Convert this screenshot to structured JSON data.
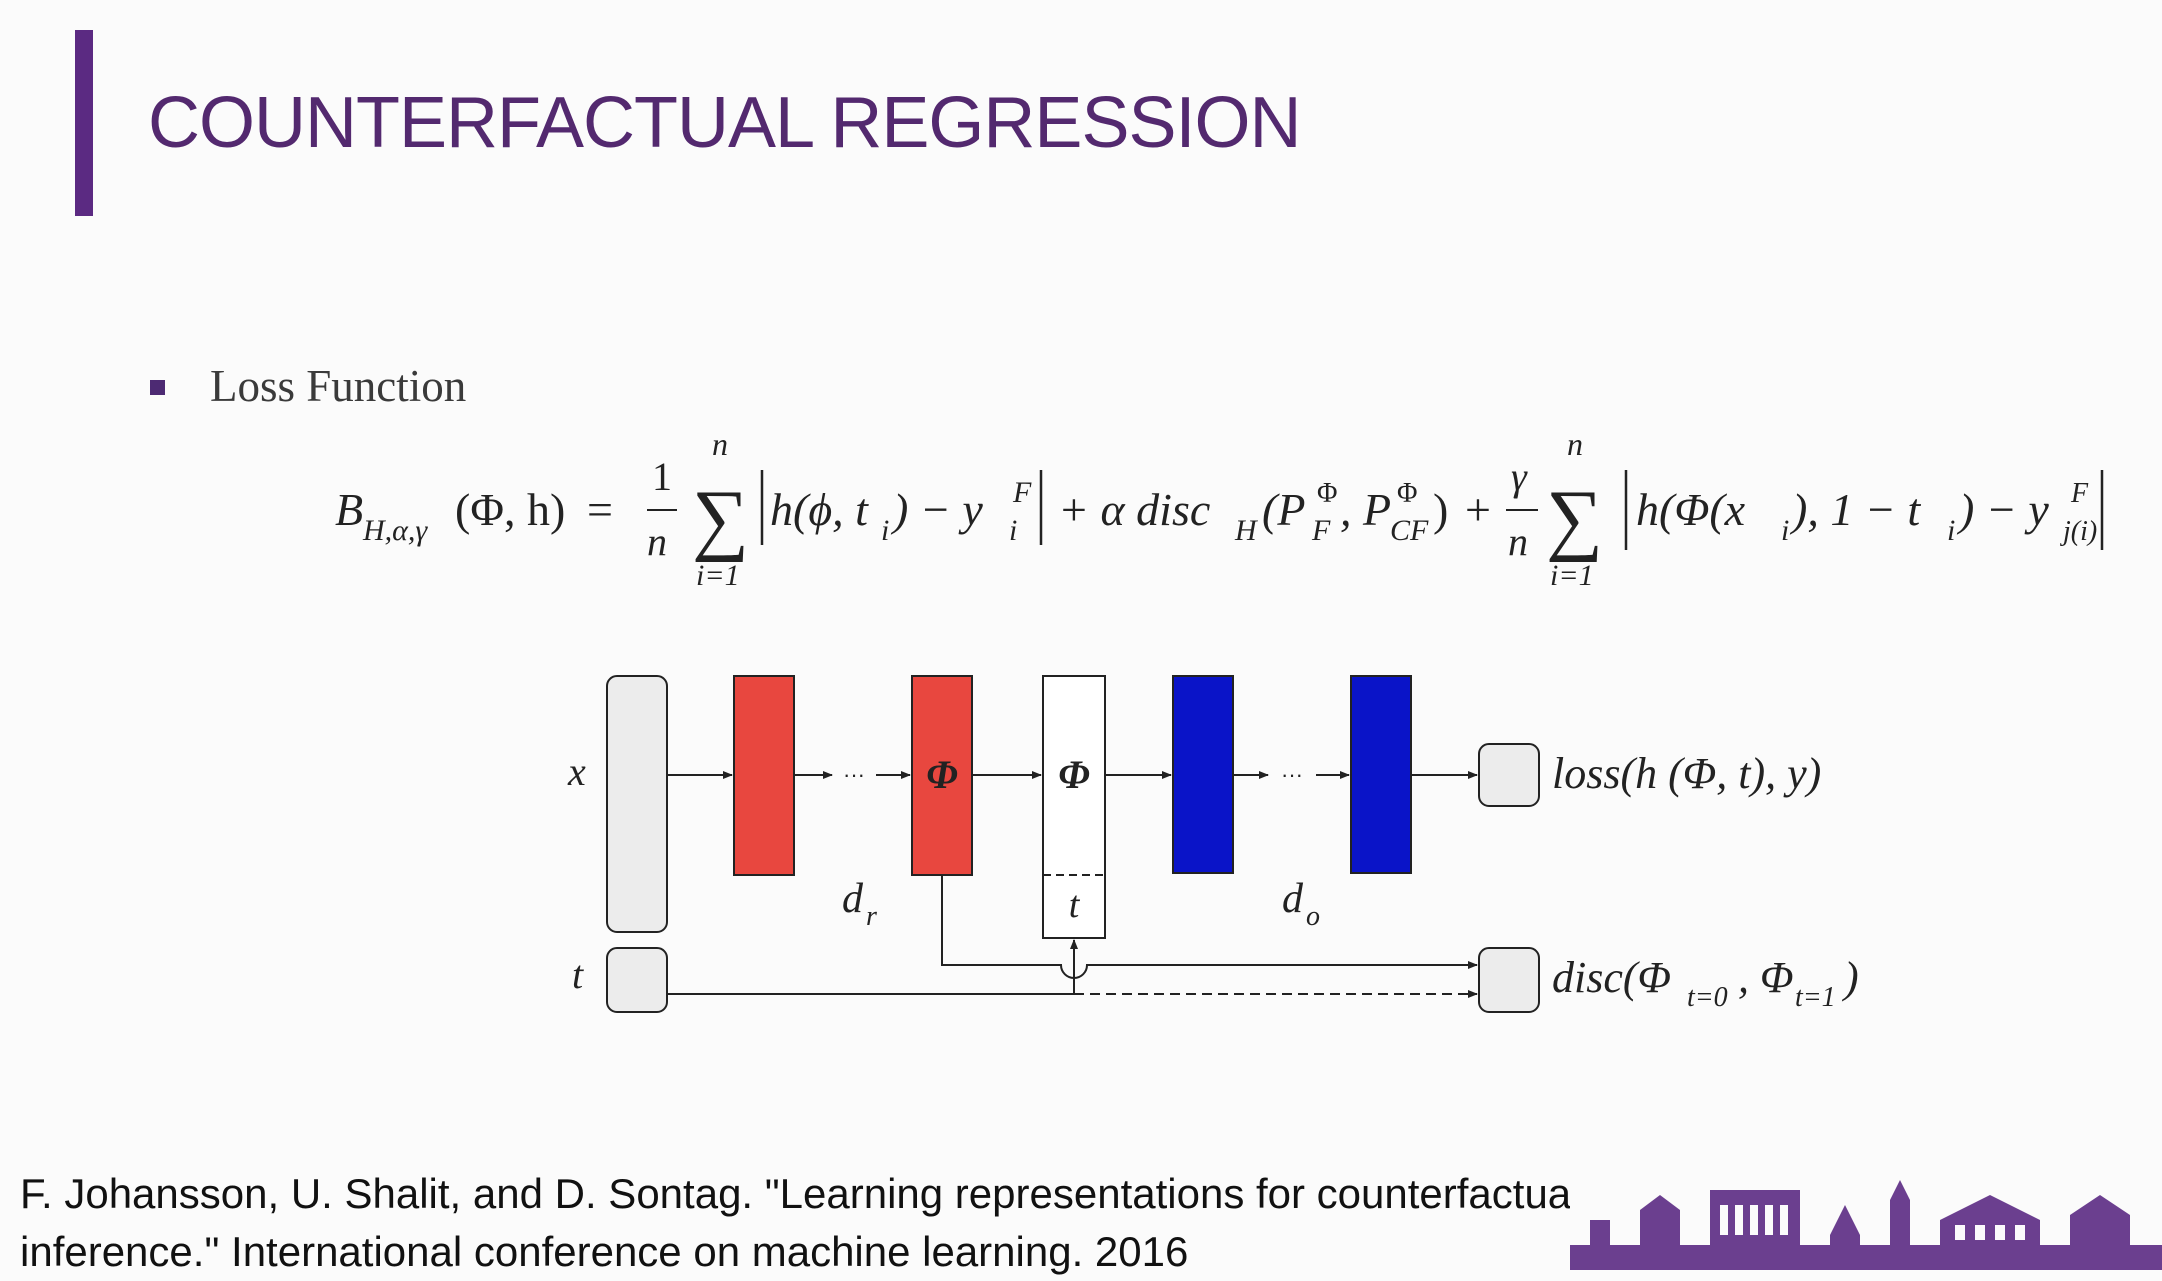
{
  "slide": {
    "title": "COUNTERFACTUAL REGRESSION",
    "bullet": "Loss Function"
  },
  "equation": {
    "lhs": "B",
    "lhs_sub": "H,α,γ",
    "lhs_args": "(Φ, h)",
    "equals": "=",
    "frac1_num": "1",
    "frac1_den": "n",
    "sum_upper": "n",
    "sum_lower": "i=1",
    "sum_symbol": "∑",
    "term1_body": "h(ϕ, t",
    "term1_sub_i": "i",
    "term1_close": ") − y",
    "term1_y_sup": "F",
    "term1_y_sub": "i",
    "plus1": "+ α disc",
    "disc_sub": "H",
    "disc_open": "(P",
    "pf_sup": "Φ",
    "pf_sub": "F",
    "comma": ", P",
    "pcf_sup": "Φ",
    "pcf_sub": "CF",
    "disc_close": ")",
    "plus2": "+",
    "frac2_num": "γ",
    "frac2_den": "n",
    "term2_body": "h(Φ(x",
    "term2_sub_i": "i",
    "term2_mid": "), 1 − t",
    "term2_sub_i2": "i",
    "term2_close": ") − y",
    "term2_y_sup": "F",
    "term2_y_sub": "j(i)"
  },
  "diagram": {
    "x_label": "x",
    "t_label": "t",
    "ellipsis": "···",
    "phi": "Φ",
    "t_in_box": "t",
    "dr_label": "d",
    "dr_sub": "r",
    "do_label": "d",
    "do_sub": "o",
    "loss_label": "loss(h (Φ, t), y)",
    "disc_label": "disc(Φ",
    "disc_sub0": "t=0",
    "disc_mid": ", Φ",
    "disc_sub1": "t=1",
    "disc_end": ")",
    "colors": {
      "red": "#e8473f",
      "blue": "#0a14c8",
      "input": "#ececec"
    }
  },
  "citation": {
    "line1": "F. Johansson, U. Shalit, and D. Sontag. \"Learning representations for counterfactual",
    "line2": "inference.\" International conference on machine learning. 2016"
  }
}
